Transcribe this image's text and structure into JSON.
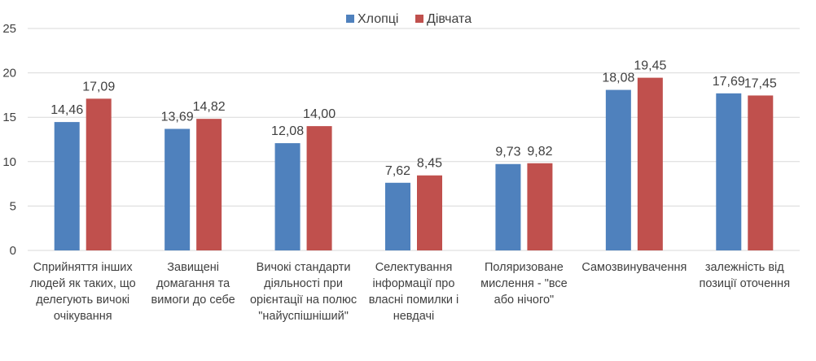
{
  "chart_data": {
    "type": "bar",
    "categories": [
      [
        "Сприйняття інших",
        "людей як таких, що",
        "делегують вичокі",
        "очікування"
      ],
      [
        "Завищені",
        "домагання та",
        "вимоги до себе"
      ],
      [
        "Вичокі стандарти",
        "діяльності при",
        "орієнтації на полюс",
        "\"найуспішніший\""
      ],
      [
        "Селектування",
        "інформації про",
        "власні помилки і",
        "невдачі"
      ],
      [
        "Поляризоване",
        "мислення - \"все",
        "або нічого\""
      ],
      [
        "Самозвинувачення"
      ],
      [
        "залежність від",
        "позиції оточення"
      ]
    ],
    "series": [
      {
        "name": "Хлопці",
        "color": "#4f81bd",
        "values": [
          14.46,
          13.69,
          12.08,
          7.62,
          9.73,
          18.08,
          17.69
        ],
        "labels": [
          "14,46",
          "13,69",
          "12,08",
          "7,62",
          "9,73",
          "18,08",
          "17,69"
        ]
      },
      {
        "name": "Дівчата",
        "color": "#c0504d",
        "values": [
          17.09,
          14.82,
          14.0,
          8.45,
          9.82,
          19.45,
          17.45
        ],
        "labels": [
          "17,09",
          "14,82",
          "14,00",
          "8,45",
          "9,82",
          "19,45",
          "17,45"
        ]
      }
    ],
    "yticks": [
      "0",
      "5",
      "10",
      "15",
      "20",
      "25"
    ],
    "ylim": [
      0,
      25
    ],
    "grid": true,
    "legend_position": "top-center",
    "title": "",
    "xlabel": "",
    "ylabel": ""
  }
}
